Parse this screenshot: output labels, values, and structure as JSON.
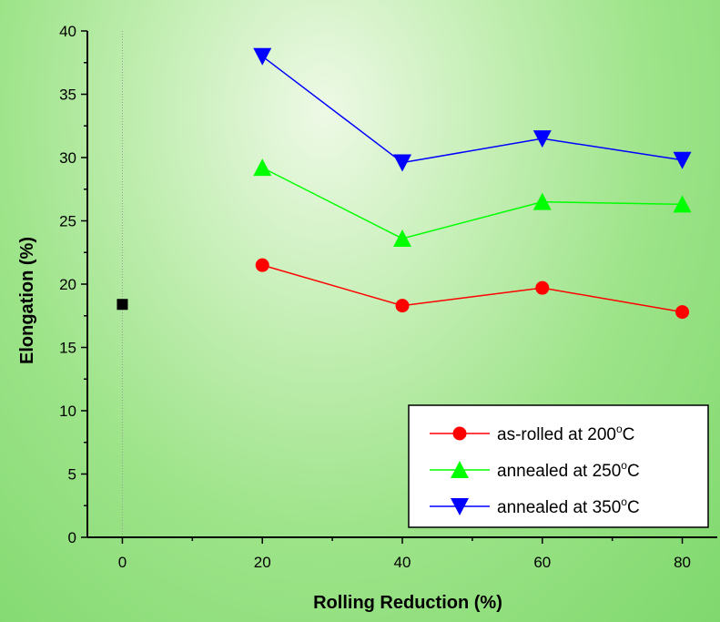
{
  "chart_data": {
    "type": "line",
    "xlabel": "Rolling Reduction (%)",
    "ylabel": "Elongation (%)",
    "xlim": [
      -5,
      85
    ],
    "ylim": [
      0,
      40
    ],
    "x_ticks": [
      "0",
      "20",
      "40",
      "60",
      "80"
    ],
    "y_ticks": [
      "0",
      "5",
      "10",
      "15",
      "20",
      "25",
      "30",
      "35",
      "40"
    ],
    "legend_position": "bottom-right",
    "baseline": {
      "x": 0,
      "y": 18.4,
      "marker": "square",
      "color": "#000000"
    },
    "series": [
      {
        "name": "as-rolled at 200",
        "superscript": "o",
        "unit": "C",
        "marker": "circle",
        "color": "#ff0000",
        "x": [
          20,
          40,
          60,
          80
        ],
        "y": [
          21.5,
          18.3,
          19.7,
          17.8
        ]
      },
      {
        "name": "annealed at 250",
        "superscript": "o",
        "unit": "C",
        "marker": "triangle-up",
        "color": "#00ff00",
        "x": [
          20,
          40,
          60,
          80
        ],
        "y": [
          29.2,
          23.6,
          26.5,
          26.3
        ]
      },
      {
        "name": "annealed at 350",
        "superscript": "o",
        "unit": "C",
        "marker": "triangle-down",
        "color": "#0000ff",
        "x": [
          20,
          40,
          60,
          80
        ],
        "y": [
          38.0,
          29.6,
          31.5,
          29.8
        ]
      }
    ]
  }
}
